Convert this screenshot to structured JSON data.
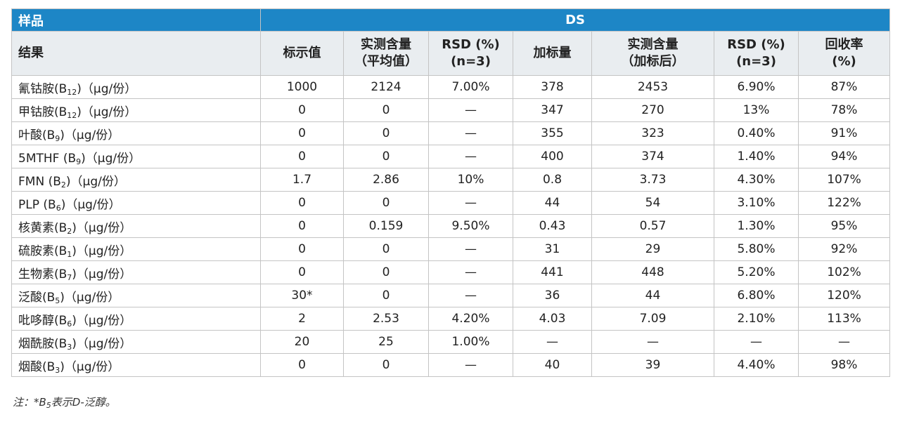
{
  "table": {
    "band": {
      "sample": "样品",
      "ds": "DS"
    },
    "headers": [
      {
        "lines": [
          "结果"
        ]
      },
      {
        "lines": [
          "标示值"
        ]
      },
      {
        "lines": [
          "实测含量",
          "（平均值）"
        ]
      },
      {
        "lines": [
          "RSD (%)",
          "(n=3)"
        ]
      },
      {
        "lines": [
          "加标量"
        ]
      },
      {
        "lines": [
          "实测含量",
          "（加标后）"
        ]
      },
      {
        "lines": [
          "RSD (%)",
          "(n=3)"
        ]
      },
      {
        "lines": [
          "回收率",
          "(%)"
        ]
      }
    ],
    "rows": [
      {
        "name": "氰钴胺(B",
        "sub": "12",
        "tail": ")（μg/份）",
        "cells": [
          "1000",
          "2124",
          "7.00%",
          "378",
          "2453",
          "6.90%",
          "87%"
        ]
      },
      {
        "name": "甲钴胺(B",
        "sub": "12",
        "tail": ")（μg/份）",
        "cells": [
          "0",
          "0",
          "—",
          "347",
          "270",
          "13%",
          "78%"
        ]
      },
      {
        "name": "叶酸(B",
        "sub": "9",
        "tail": ")（μg/份）",
        "cells": [
          "0",
          "0",
          "—",
          "355",
          "323",
          "0.40%",
          "91%"
        ]
      },
      {
        "name": "5MTHF (B",
        "sub": "9",
        "tail": ")（μg/份）",
        "cells": [
          "0",
          "0",
          "—",
          "400",
          "374",
          "1.40%",
          "94%"
        ]
      },
      {
        "name": "FMN (B",
        "sub": "2",
        "tail": ")（μg/份）",
        "cells": [
          "1.7",
          "2.86",
          "10%",
          "0.8",
          "3.73",
          "4.30%",
          "107%"
        ]
      },
      {
        "name": "PLP (B",
        "sub": "6",
        "tail": ")（μg/份）",
        "cells": [
          "0",
          "0",
          "—",
          "44",
          "54",
          "3.10%",
          "122%"
        ]
      },
      {
        "name": "核黄素(B",
        "sub": "2",
        "tail": ")（μg/份）",
        "cells": [
          "0",
          "0.159",
          "9.50%",
          "0.43",
          "0.57",
          "1.30%",
          "95%"
        ]
      },
      {
        "name": "硫胺素(B",
        "sub": "1",
        "tail": ")（μg/份）",
        "cells": [
          "0",
          "0",
          "—",
          "31",
          "29",
          "5.80%",
          "92%"
        ]
      },
      {
        "name": "生物素(B",
        "sub": "7",
        "tail": ")（μg/份）",
        "cells": [
          "0",
          "0",
          "—",
          "441",
          "448",
          "5.20%",
          "102%"
        ]
      },
      {
        "name": "泛酸(B",
        "sub": "5",
        "tail": ")（μg/份）",
        "cells": [
          "30*",
          "0",
          "—",
          "36",
          "44",
          "6.80%",
          "120%"
        ]
      },
      {
        "name": "吡哆醇(B",
        "sub": "6",
        "tail": ")（μg/份）",
        "cells": [
          "2",
          "2.53",
          "4.20%",
          "4.03",
          "7.09",
          "2.10%",
          "113%"
        ]
      },
      {
        "name": "烟酰胺(B",
        "sub": "3",
        "tail": ")（μg/份）",
        "cells": [
          "20",
          "25",
          "1.00%",
          "—",
          "—",
          "—",
          "—"
        ]
      },
      {
        "name": "烟酸(B",
        "sub": "3",
        "tail": ")（μg/份）",
        "cells": [
          "0",
          "0",
          "—",
          "40",
          "39",
          "4.40%",
          "98%"
        ]
      }
    ]
  },
  "note": {
    "prefix": "注：*B",
    "sub": "5",
    "suffix": "表示D-泛醇。"
  },
  "colors": {
    "band": "#1d86c6",
    "header": "#e9edf0",
    "border": "#c4c4c4"
  }
}
